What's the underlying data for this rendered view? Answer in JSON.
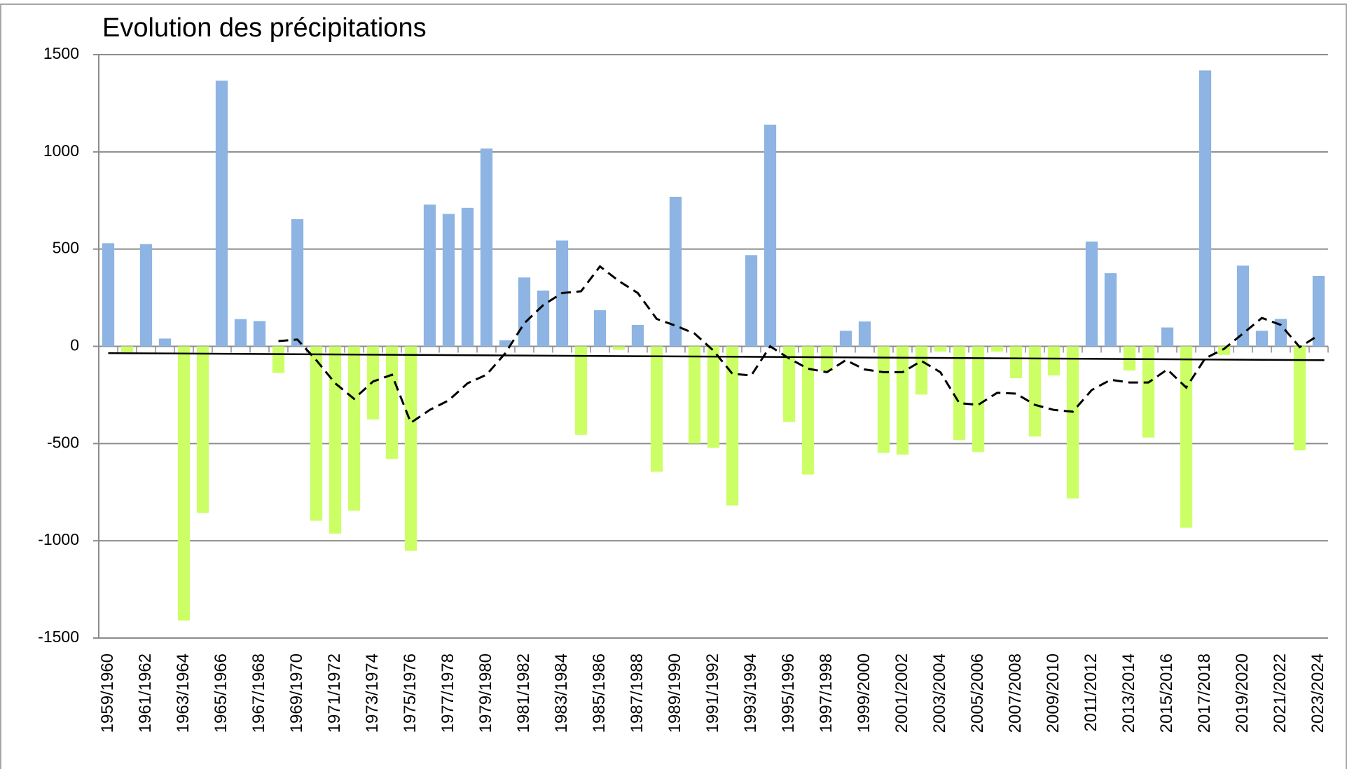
{
  "chart_data": {
    "type": "bar",
    "title": "Evolution des précipitations",
    "categories": [
      "1959/1960",
      null,
      "1961/1962",
      null,
      "1963/1964",
      null,
      "1965/1966",
      null,
      "1967/1968",
      null,
      "1969/1970",
      null,
      "1971/1972",
      null,
      "1973/1974",
      null,
      "1975/1976",
      null,
      "1977/1978",
      null,
      "1979/1980",
      null,
      "1981/1982",
      null,
      "1983/1984",
      null,
      "1985/1986",
      null,
      "1987/1988",
      null,
      "1989/1990",
      null,
      "1991/1992",
      null,
      "1993/1994",
      null,
      "1995/1996",
      null,
      "1997/1998",
      null,
      "1999/2000",
      null,
      "2001/2002",
      null,
      "2003/2004",
      null,
      "2005/2006",
      null,
      "2007/2008",
      null,
      "2009/2010",
      null,
      "2011/2012",
      null,
      "2013/2014",
      null,
      "2015/2016",
      null,
      "2017/2018",
      null,
      "2019/2020",
      null,
      "2021/2022",
      null,
      "2023/2024"
    ],
    "values": [
      530,
      -30,
      526,
      40,
      -1410,
      -857,
      1366,
      140,
      130,
      -137,
      654,
      -897,
      -963,
      -845,
      -376,
      -579,
      -1052,
      729,
      681,
      712,
      1017,
      31,
      354,
      287,
      544,
      -455,
      186,
      -18,
      110,
      -645,
      769,
      -500,
      -522,
      -818,
      469,
      1140,
      -389,
      -659,
      -128,
      80,
      128,
      -548,
      -557,
      -248,
      -27,
      -482,
      -544,
      -27,
      -164,
      -464,
      -150,
      -782,
      539,
      376,
      -124,
      -469,
      97,
      -933,
      1419,
      -44,
      415,
      80,
      141,
      -535,
      362
    ],
    "positive_color": "#8db4e2",
    "negative_color": "#ccff66",
    "moving_average": {
      "color": "#000000",
      "dashed": true,
      "values": [
        null,
        null,
        null,
        null,
        null,
        null,
        null,
        null,
        null,
        27,
        35,
        -71,
        -190,
        -270,
        -181,
        -146,
        -393,
        -327,
        -278,
        -190,
        -146,
        -35,
        119,
        212,
        274,
        283,
        411,
        336,
        274,
        141,
        106,
        66,
        -22,
        -141,
        -150,
        0,
        -62,
        -115,
        -133,
        -71,
        -119,
        -133,
        -133,
        -75,
        -133,
        -292,
        -301,
        -239,
        -243,
        -301,
        -327,
        -336,
        -225,
        -172,
        -186,
        -186,
        -119,
        -212,
        -62,
        -13,
        66,
        146,
        110,
        -4,
        57
      ]
    },
    "trend": {
      "color": "#000000",
      "start": -35,
      "end": -71
    },
    "ylim": [
      -1500,
      1500
    ],
    "yticks": [
      -1500,
      -1000,
      -500,
      0,
      500,
      1000,
      1500
    ],
    "grid": true
  }
}
